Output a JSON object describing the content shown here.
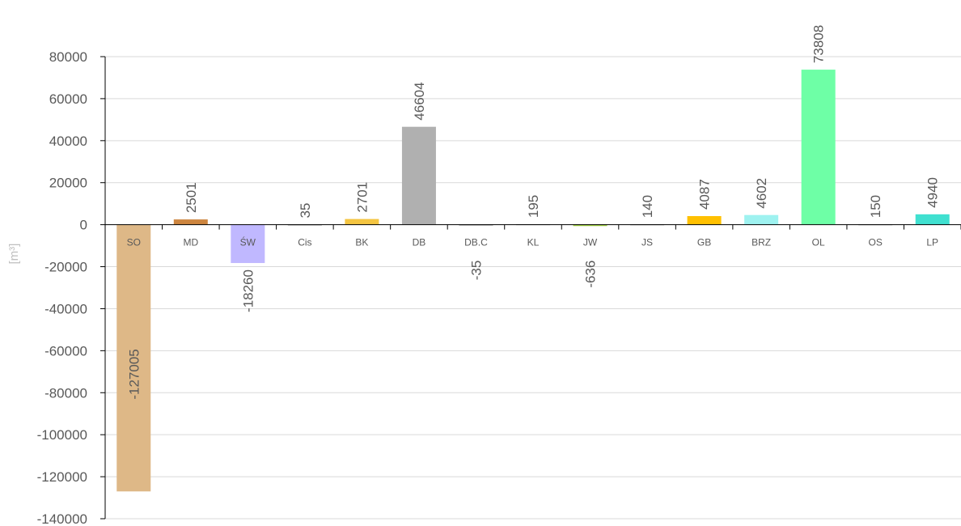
{
  "chart_data": {
    "type": "bar",
    "categories": [
      "SO",
      "MD",
      "ŚW",
      "Cis",
      "BK",
      "DB",
      "DB.C",
      "KL",
      "JW",
      "JS",
      "GB",
      "BRZ",
      "OL",
      "OS",
      "LP"
    ],
    "values": [
      -127005,
      2501,
      -18260,
      35,
      2701,
      46604,
      -35,
      195,
      -636,
      140,
      4087,
      4602,
      73808,
      150,
      4940
    ],
    "colors": [
      "#deb887",
      "#cd853f",
      "#c0b8ff",
      "#7f7f7f",
      "#f4c542",
      "#b0b0b0",
      "#7f7f7f",
      "#7f7f7f",
      "#9acd32",
      "#7f7f7f",
      "#ffc000",
      "#9ef2f0",
      "#6effa6",
      "#7f7f7f",
      "#40e0d0"
    ],
    "title": "",
    "xlabel": "",
    "ylabel": "[m³]",
    "ylim": [
      -140000,
      80000
    ],
    "ytick_step": 20000,
    "grid": true,
    "legend": "none"
  }
}
